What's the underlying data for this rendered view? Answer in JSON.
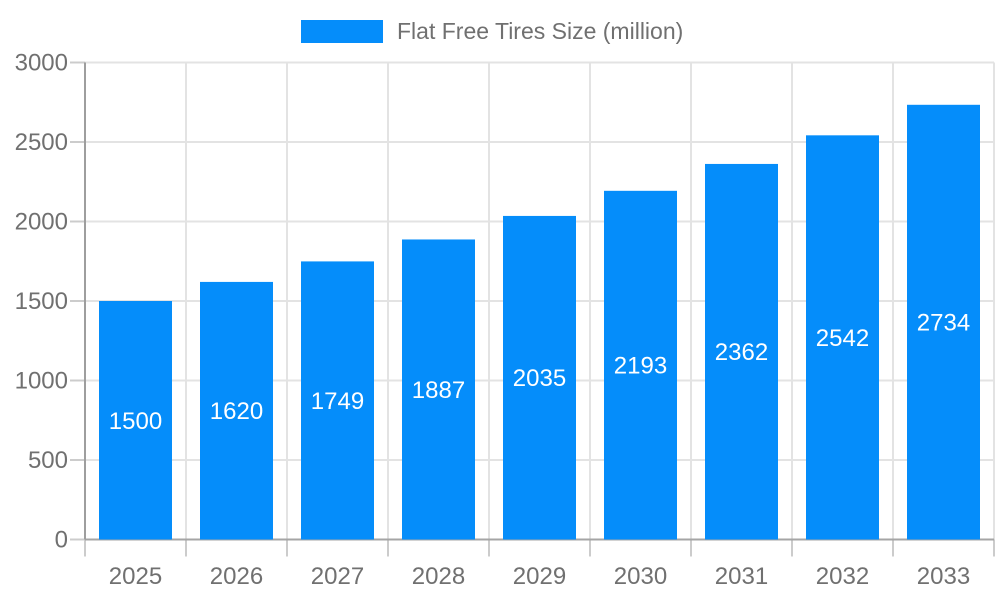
{
  "legend": {
    "label": "Flat Free Tires Size (million)"
  },
  "colors": {
    "bar": "#058DFA",
    "grid": "#e3e3e3",
    "axis": "#9e9e9e",
    "baseline": "#a5a5a5",
    "tick": "#cccccc",
    "text": "#707070",
    "value_label": "#ffffff",
    "background": "#ffffff"
  },
  "chart_data": {
    "type": "bar",
    "title": "Flat Free Tires Size (million)",
    "categories": [
      "2025",
      "2026",
      "2027",
      "2028",
      "2029",
      "2030",
      "2031",
      "2032",
      "2033"
    ],
    "values": [
      1500,
      1620,
      1749,
      1887,
      2035,
      2193,
      2362,
      2542,
      2734
    ],
    "series": [
      {
        "name": "Flat Free Tires Size (million)",
        "values": [
          1500,
          1620,
          1749,
          1887,
          2035,
          2193,
          2362,
          2542,
          2734
        ]
      }
    ],
    "xlabel": "",
    "ylabel": "",
    "ylim": [
      0,
      3000
    ],
    "yticks": [
      0,
      500,
      1000,
      1500,
      2000,
      2500,
      3000
    ],
    "grid": true,
    "legend_position": "top-center",
    "value_label_position": "inside-center"
  }
}
